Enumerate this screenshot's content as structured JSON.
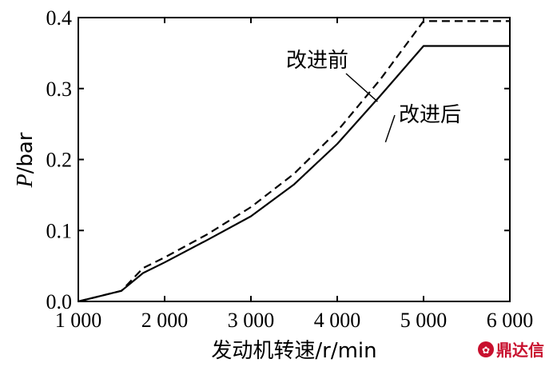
{
  "chart_data": {
    "type": "line",
    "xlabel": "发动机转速/r/min",
    "ylabel": "P/bar",
    "ylabel_italic_part": "P",
    "ylabel_rest": "/bar",
    "xlim": [
      1000,
      6000
    ],
    "ylim": [
      0.0,
      0.4
    ],
    "x_ticks": [
      1000,
      2000,
      3000,
      4000,
      5000,
      6000
    ],
    "x_tick_labels": [
      "1 000",
      "2 000",
      "3 000",
      "4 000",
      "5 000",
      "6 000"
    ],
    "y_ticks": [
      0.0,
      0.1,
      0.2,
      0.3,
      0.4
    ],
    "y_tick_labels": [
      "0.0",
      "0.1",
      "0.2",
      "0.3",
      "0.4"
    ],
    "grid": false,
    "series": [
      {
        "name": "改进前",
        "style": "dashed",
        "color": "#000000",
        "x": [
          1000,
          1500,
          1750,
          2000,
          2500,
          3000,
          3500,
          4000,
          4500,
          5000,
          6000
        ],
        "y": [
          0.0,
          0.015,
          0.047,
          0.062,
          0.095,
          0.133,
          0.18,
          0.24,
          0.313,
          0.395,
          0.395
        ]
      },
      {
        "name": "改进后",
        "style": "solid",
        "color": "#000000",
        "x": [
          1000,
          1500,
          1750,
          2000,
          2500,
          3000,
          3500,
          4000,
          4500,
          5000,
          6000
        ],
        "y": [
          0.0,
          0.015,
          0.04,
          0.055,
          0.087,
          0.12,
          0.165,
          0.222,
          0.29,
          0.36,
          0.36
        ]
      }
    ],
    "annotations": [
      {
        "text": "改进前",
        "series": 0,
        "x": 4300,
        "y": 0.285
      },
      {
        "text": "改进后",
        "series": 1,
        "x": 4300,
        "y": 0.265
      }
    ]
  },
  "watermark": {
    "text": "鼎达信",
    "color": "#c8102e"
  }
}
